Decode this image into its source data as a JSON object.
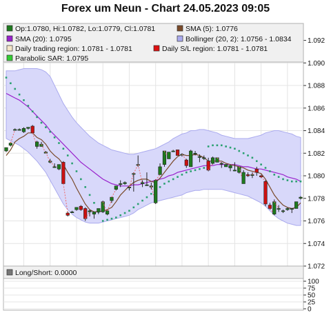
{
  "page": {
    "title": "Forex um Neun - Chart 24.05.2023 09:05"
  },
  "legend": [
    {
      "label": "Op:1.0780, Hi:1.0782, Lo:1.0779, Cl:1.0781",
      "color": "#1e7a1e"
    },
    {
      "label": "SMA (5): 1.0776",
      "color": "#7a4a2a"
    },
    {
      "label": "SMA (20): 1.0795",
      "color": "#9922cc"
    },
    {
      "label": "Bollinger (20, 2): 1.0756 - 1.0834",
      "color": "#aaaaee"
    },
    {
      "label": "Daily trading region: 1.0781 - 1.0781",
      "color": "#f4e6c8"
    },
    {
      "label": "Daily S/L region: 1.0781 - 1.0781",
      "color": "#dd1111"
    },
    {
      "label": "Parabolic SAR: 1.0795",
      "color": "#33cc33"
    }
  ],
  "sub_legend": [
    {
      "label": "Long/Short: 0.0000",
      "color": "#777777"
    }
  ],
  "colors": {
    "bull": "#1e7a1e",
    "bear": "#cc1111",
    "sma5": "#7a4a2a",
    "sma20": "#9922cc",
    "band": "#d8d8fa",
    "band_line": "#aaaaee",
    "sar": "#2aa070",
    "grid": "#e4e4e4"
  },
  "chart_data": [
    {
      "type": "candlestick",
      "title": "Forex um Neun - Chart 24.05.2023 09:05",
      "y_ticks": [
        "1.072",
        "1.074",
        "1.076",
        "1.078",
        "1.080",
        "1.082",
        "1.084",
        "1.086",
        "1.088",
        "1.090",
        "1.092"
      ],
      "ylim": [
        1.072,
        1.0935
      ],
      "grid": true,
      "legend_position": "top",
      "candles": [
        {
          "o": 1.0822,
          "h": 1.0825,
          "l": 1.0821,
          "c": 1.0825
        },
        {
          "o": 1.0827,
          "h": 1.083,
          "l": 1.0826,
          "c": 1.0829
        },
        {
          "o": 1.0841,
          "h": 1.0842,
          "l": 1.084,
          "c": 1.0841
        },
        {
          "o": 1.0841,
          "h": 1.0842,
          "l": 1.084,
          "c": 1.0841
        },
        {
          "o": 1.0839,
          "h": 1.0843,
          "l": 1.0838,
          "c": 1.0842
        },
        {
          "o": 1.0842,
          "h": 1.0843,
          "l": 1.0841,
          "c": 1.0843
        },
        {
          "o": 1.0844,
          "h": 1.0845,
          "l": 1.0837,
          "c": 1.0838
        },
        {
          "o": 1.0826,
          "h": 1.0831,
          "l": 1.0824,
          "c": 1.083
        },
        {
          "o": 1.0826,
          "h": 1.083,
          "l": 1.0826,
          "c": 1.0828
        },
        {
          "o": 1.082,
          "h": 1.0822,
          "l": 1.082,
          "c": 1.0821
        },
        {
          "o": 1.0812,
          "h": 1.0815,
          "l": 1.0811,
          "c": 1.0813
        },
        {
          "o": 1.0808,
          "h": 1.0811,
          "l": 1.0807,
          "c": 1.0808
        },
        {
          "o": 1.0806,
          "h": 1.081,
          "l": 1.0805,
          "c": 1.081
        },
        {
          "o": 1.0812,
          "h": 1.0813,
          "l": 1.0793,
          "c": 1.0793
        },
        {
          "o": 1.0767,
          "h": 1.0768,
          "l": 1.0764,
          "c": 1.0765
        },
        {
          "o": 1.0768,
          "h": 1.0769,
          "l": 1.0767,
          "c": 1.0768
        },
        {
          "o": 1.077,
          "h": 1.0772,
          "l": 1.0769,
          "c": 1.0772
        },
        {
          "o": 1.0773,
          "h": 1.0774,
          "l": 1.0769,
          "c": 1.077
        },
        {
          "o": 1.0771,
          "h": 1.0772,
          "l": 1.076,
          "c": 1.0762
        },
        {
          "o": 1.0768,
          "h": 1.077,
          "l": 1.0764,
          "c": 1.0769
        },
        {
          "o": 1.0766,
          "h": 1.0768,
          "l": 1.0762,
          "c": 1.0768
        },
        {
          "o": 1.0768,
          "h": 1.0771,
          "l": 1.0766,
          "c": 1.0771
        },
        {
          "o": 1.0768,
          "h": 1.0778,
          "l": 1.0767,
          "c": 1.0777
        },
        {
          "o": 1.0766,
          "h": 1.077,
          "l": 1.0765,
          "c": 1.0769
        },
        {
          "o": 1.0778,
          "h": 1.0781,
          "l": 1.0776,
          "c": 1.0781
        },
        {
          "o": 1.0788,
          "h": 1.0791,
          "l": 1.0787,
          "c": 1.0791
        },
        {
          "o": 1.0793,
          "h": 1.0796,
          "l": 1.079,
          "c": 1.0793
        },
        {
          "o": 1.0793,
          "h": 1.0795,
          "l": 1.0792,
          "c": 1.0794
        },
        {
          "o": 1.079,
          "h": 1.0791,
          "l": 1.0787,
          "c": 1.079
        },
        {
          "o": 1.0802,
          "h": 1.0803,
          "l": 1.0786,
          "c": 1.0802
        },
        {
          "o": 1.081,
          "h": 1.0818,
          "l": 1.0808,
          "c": 1.081
        },
        {
          "o": 1.0793,
          "h": 1.0796,
          "l": 1.079,
          "c": 1.0794
        },
        {
          "o": 1.0792,
          "h": 1.0803,
          "l": 1.0791,
          "c": 1.0792
        },
        {
          "o": 1.079,
          "h": 1.0794,
          "l": 1.0788,
          "c": 1.0791
        },
        {
          "o": 1.0776,
          "h": 1.0797,
          "l": 1.0775,
          "c": 1.0796
        },
        {
          "o": 1.0801,
          "h": 1.0811,
          "l": 1.0801,
          "c": 1.0808
        },
        {
          "o": 1.081,
          "h": 1.0822,
          "l": 1.0808,
          "c": 1.0822
        },
        {
          "o": 1.0815,
          "h": 1.0821,
          "l": 1.0815,
          "c": 1.0821
        },
        {
          "o": 1.0822,
          "h": 1.0823,
          "l": 1.0821,
          "c": 1.0822
        },
        {
          "o": 1.0823,
          "h": 1.0823,
          "l": 1.0818,
          "c": 1.0818
        },
        {
          "o": 1.0819,
          "h": 1.082,
          "l": 1.0817,
          "c": 1.0819
        },
        {
          "o": 1.0814,
          "h": 1.0815,
          "l": 1.0807,
          "c": 1.0809
        },
        {
          "o": 1.0808,
          "h": 1.0823,
          "l": 1.0808,
          "c": 1.0822
        },
        {
          "o": 1.082,
          "h": 1.0822,
          "l": 1.0818,
          "c": 1.082
        },
        {
          "o": 1.0817,
          "h": 1.0819,
          "l": 1.0812,
          "c": 1.0817
        },
        {
          "o": 1.0816,
          "h": 1.0818,
          "l": 1.0814,
          "c": 1.0816
        },
        {
          "o": 1.0813,
          "h": 1.0816,
          "l": 1.0804,
          "c": 1.0805
        },
        {
          "o": 1.0811,
          "h": 1.0817,
          "l": 1.081,
          "c": 1.0816
        },
        {
          "o": 1.0812,
          "h": 1.0816,
          "l": 1.0812,
          "c": 1.0816
        },
        {
          "o": 1.0811,
          "h": 1.0812,
          "l": 1.0807,
          "c": 1.0811
        },
        {
          "o": 1.0808,
          "h": 1.081,
          "l": 1.0808,
          "c": 1.081
        },
        {
          "o": 1.0807,
          "h": 1.081,
          "l": 1.0804,
          "c": 1.0809
        },
        {
          "o": 1.0805,
          "h": 1.0812,
          "l": 1.0804,
          "c": 1.0805
        },
        {
          "o": 1.0803,
          "h": 1.0808,
          "l": 1.0802,
          "c": 1.0808
        },
        {
          "o": 1.0793,
          "h": 1.0805,
          "l": 1.0793,
          "c": 1.0803
        },
        {
          "o": 1.0801,
          "h": 1.0803,
          "l": 1.0799,
          "c": 1.08
        },
        {
          "o": 1.0801,
          "h": 1.0803,
          "l": 1.0798,
          "c": 1.0801
        },
        {
          "o": 1.0806,
          "h": 1.0808,
          "l": 1.08,
          "c": 1.0803
        },
        {
          "o": 1.08,
          "h": 1.0801,
          "l": 1.0798,
          "c": 1.0799
        },
        {
          "o": 1.0795,
          "h": 1.0796,
          "l": 1.0773,
          "c": 1.0775
        },
        {
          "o": 1.0774,
          "h": 1.0776,
          "l": 1.077,
          "c": 1.0771
        },
        {
          "o": 1.0766,
          "h": 1.0779,
          "l": 1.0765,
          "c": 1.0777
        },
        {
          "o": 1.0771,
          "h": 1.0774,
          "l": 1.0768,
          "c": 1.0771
        },
        {
          "o": 1.0769,
          "h": 1.077,
          "l": 1.0767,
          "c": 1.0769
        },
        {
          "o": 1.077,
          "h": 1.0772,
          "l": 1.0769,
          "c": 1.0771
        },
        {
          "o": 1.0771,
          "h": 1.0771,
          "l": 1.0767,
          "c": 1.0771
        },
        {
          "o": 1.0771,
          "h": 1.0777,
          "l": 1.0771,
          "c": 1.0777
        },
        {
          "o": 1.078,
          "h": 1.0782,
          "l": 1.0779,
          "c": 1.0781
        }
      ],
      "sma5": [
        1.0818,
        1.0823,
        1.083,
        1.0833,
        1.0835,
        1.0838,
        1.0838,
        1.0834,
        1.0832,
        1.0828,
        1.0822,
        1.0818,
        1.0815,
        1.081,
        1.0803,
        1.0797,
        1.0789,
        1.0782,
        1.0775,
        1.077,
        1.0768,
        1.0768,
        1.0769,
        1.077,
        1.0772,
        1.0777,
        1.0783,
        1.0787,
        1.0791,
        1.0794,
        1.0796,
        1.0797,
        1.0797,
        1.0795,
        1.0794,
        1.0798,
        1.0803,
        1.0808,
        1.0813,
        1.0817,
        1.0819,
        1.0818,
        1.0818,
        1.0819,
        1.0818,
        1.0816,
        1.0813,
        1.0813,
        1.0813,
        1.0813,
        1.0811,
        1.081,
        1.0809,
        1.0808,
        1.0807,
        1.0805,
        1.0804,
        1.0803,
        1.0802,
        1.0797,
        1.079,
        1.0783,
        1.0778,
        1.0774,
        1.0772,
        1.0771,
        1.0772,
        1.0776
      ],
      "sma20": [
        1.0873,
        1.0871,
        1.0869,
        1.0867,
        1.0864,
        1.0861,
        1.0857,
        1.0853,
        1.0849,
        1.0845,
        1.084,
        1.0836,
        1.0832,
        1.0828,
        1.0824,
        1.082,
        1.0816,
        1.0812,
        1.0809,
        1.0806,
        1.0803,
        1.08,
        1.0797,
        1.0795,
        1.0793,
        1.0792,
        1.0791,
        1.0791,
        1.0791,
        1.0792,
        1.0792,
        1.0793,
        1.0794,
        1.0795,
        1.0796,
        1.0797,
        1.0798,
        1.08,
        1.0801,
        1.0803,
        1.0804,
        1.0805,
        1.0806,
        1.0807,
        1.0808,
        1.0809,
        1.0809,
        1.0809,
        1.081,
        1.081,
        1.081,
        1.081,
        1.081,
        1.0809,
        1.0808,
        1.0808,
        1.0807,
        1.0806,
        1.0806,
        1.0805,
        1.0804,
        1.0803,
        1.0802,
        1.0801,
        1.0799,
        1.0798,
        1.0797,
        1.0795
      ],
      "bollinger_upper": [
        1.0893,
        1.0893,
        1.0893,
        1.0894,
        1.0895,
        1.0895,
        1.0895,
        1.0895,
        1.0894,
        1.0892,
        1.0888,
        1.088,
        1.0872,
        1.0864,
        1.0858,
        1.0852,
        1.0847,
        1.0843,
        1.0839,
        1.0835,
        1.0832,
        1.0829,
        1.0827,
        1.0825,
        1.0823,
        1.0822,
        1.0821,
        1.082,
        1.0819,
        1.0819,
        1.082,
        1.0821,
        1.0822,
        1.0823,
        1.0824,
        1.0826,
        1.0828,
        1.083,
        1.0833,
        1.0835,
        1.0837,
        1.0838,
        1.084,
        1.084,
        1.0841,
        1.0841,
        1.084,
        1.0839,
        1.0838,
        1.0836,
        1.0835,
        1.0834,
        1.0833,
        1.0833,
        1.0833,
        1.0833,
        1.0834,
        1.0835,
        1.0836,
        1.0838,
        1.0839,
        1.084,
        1.084,
        1.0839,
        1.0838,
        1.0837,
        1.0835,
        1.0834
      ],
      "bollinger_lower": [
        1.0833,
        1.0831,
        1.0829,
        1.0827,
        1.0824,
        1.0821,
        1.0817,
        1.0813,
        1.0808,
        1.0803,
        1.0796,
        1.0789,
        1.0782,
        1.0775,
        1.077,
        1.0766,
        1.0763,
        1.0761,
        1.0759,
        1.0758,
        1.0758,
        1.0758,
        1.0759,
        1.076,
        1.0761,
        1.0762,
        1.0763,
        1.0764,
        1.0765,
        1.0767,
        1.077,
        1.0772,
        1.0774,
        1.0776,
        1.0777,
        1.0778,
        1.0779,
        1.078,
        1.0781,
        1.0782,
        1.0783,
        1.0785,
        1.0786,
        1.0787,
        1.0787,
        1.0788,
        1.0788,
        1.0788,
        1.0788,
        1.0788,
        1.0787,
        1.0786,
        1.0785,
        1.0784,
        1.0783,
        1.0782,
        1.078,
        1.0778,
        1.0776,
        1.0773,
        1.0769,
        1.0765,
        1.0762,
        1.076,
        1.0758,
        1.0757,
        1.0756,
        1.0756
      ],
      "sar": [
        1.0887,
        1.0882,
        1.0877,
        1.0872,
        1.0867,
        1.0862,
        1.0857,
        1.0852,
        1.0847,
        1.0843,
        1.0839,
        1.0834,
        1.0829,
        1.0824,
        1.0818,
        1.0811,
        1.0804,
        1.0797,
        1.079,
        1.0783,
        1.0776,
        1.0768,
        1.076,
        1.0761,
        1.0762,
        1.0763,
        1.0765,
        1.0767,
        1.0769,
        1.0772,
        1.0775,
        1.0778,
        1.0781,
        1.0784,
        1.0787,
        1.079,
        1.0793,
        1.0795,
        1.0797,
        1.0799,
        1.0801,
        1.0803,
        1.0804,
        1.0805,
        1.0806,
        1.0807,
        1.0826,
        1.0827,
        1.0827,
        1.0827,
        1.0826,
        1.0825,
        1.0824,
        1.0822,
        1.082,
        1.0818,
        1.0816,
        1.0813,
        1.081,
        1.0807,
        1.0804,
        1.0801,
        1.0799,
        1.0797,
        1.0796,
        1.0795,
        1.0795,
        1.0795
      ]
    },
    {
      "type": "line",
      "title": "Long/Short: 0.0000",
      "y_ticks": [
        "0",
        "25",
        "50",
        "75",
        "100"
      ],
      "ylim": [
        0,
        110
      ],
      "values": []
    }
  ]
}
